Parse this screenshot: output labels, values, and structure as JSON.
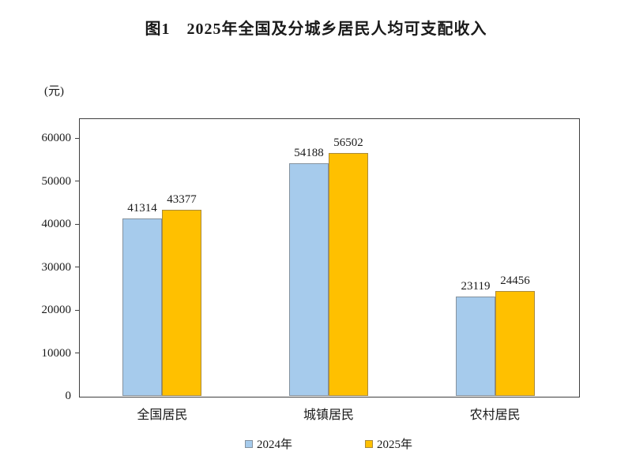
{
  "header": {
    "title": "图1　2025年全国及分城乡居民人均可支配收入"
  },
  "chart_data": {
    "type": "bar",
    "title": "图1 2025年全国及分城乡居民人均可支配收入",
    "categories": [
      "全国居民",
      "城镇居民",
      "农村居民"
    ],
    "series": [
      {
        "name": "2024年",
        "values": [
          41314,
          54188,
          23119
        ],
        "color": "#A6CBEC",
        "border_color": "#85929E"
      },
      {
        "name": "2025年",
        "values": [
          43377,
          56502,
          24456
        ],
        "color": "#FFC000",
        "border_color": "#A98A3C"
      }
    ],
    "ylabel": "(元)",
    "xlabel": "",
    "yticks": [
      0,
      10000,
      20000,
      30000,
      40000,
      50000,
      60000
    ],
    "ylim": [
      0,
      64600
    ],
    "grid": false,
    "legend_position": "bottom",
    "bar_value_labels_shown": true,
    "axis_color": "#3f3f3f",
    "background_color": "#ffffff"
  }
}
